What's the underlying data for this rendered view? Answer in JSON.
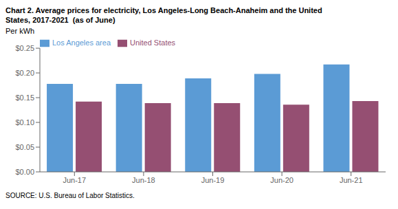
{
  "chart_data": {
    "type": "bar",
    "title": "Chart 2. Average prices for electricity, Los Angeles-Long Beach-Anaheim and the United\nStates, 2017-2021  (as of June)",
    "ylabel": "Per kWh",
    "annotations": [
      "SOURCE: U.S. Bureau of Labor Statistics."
    ],
    "categories": [
      "Jun-17",
      "Jun-18",
      "Jun-19",
      "Jun-20",
      "Jun-21"
    ],
    "series": [
      {
        "name": "Los Angeles area",
        "color": "#5B9BD5",
        "values": [
          0.178,
          0.178,
          0.189,
          0.198,
          0.217
        ]
      },
      {
        "name": "United States",
        "color": "#954F72",
        "values": [
          0.142,
          0.139,
          0.139,
          0.136,
          0.143
        ]
      }
    ],
    "ylim": [
      0,
      0.25
    ],
    "yticks": [
      {
        "value": 0.0,
        "label": "$0.00"
      },
      {
        "value": 0.05,
        "label": "$0.05"
      },
      {
        "value": 0.1,
        "label": "$0.10"
      },
      {
        "value": 0.15,
        "label": "$0.15"
      },
      {
        "value": 0.2,
        "label": "$0.20"
      },
      {
        "value": 0.25,
        "label": "$0.25"
      }
    ],
    "grid": false,
    "legend": "upper left"
  }
}
